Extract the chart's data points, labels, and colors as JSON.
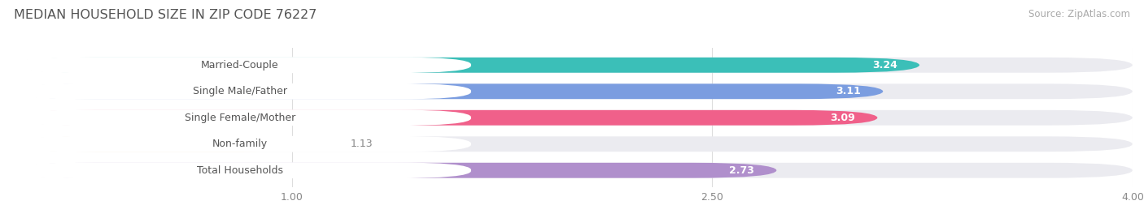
{
  "title": "MEDIAN HOUSEHOLD SIZE IN ZIP CODE 76227",
  "source": "Source: ZipAtlas.com",
  "categories": [
    "Married-Couple",
    "Single Male/Father",
    "Single Female/Mother",
    "Non-family",
    "Total Households"
  ],
  "values": [
    3.24,
    3.11,
    3.09,
    1.13,
    2.73
  ],
  "bar_colors": [
    "#3bbfb8",
    "#7b9de0",
    "#f0608a",
    "#f5c896",
    "#b08fcc"
  ],
  "bar_bg_color": "#ebebf0",
  "value_label_color_inside": "#ffffff",
  "value_label_color_outside": "#888888",
  "xlim": [
    0,
    4.0
  ],
  "xticks": [
    1.0,
    2.5,
    4.0
  ],
  "bar_height": 0.58,
  "label_fontsize": 9.0,
  "value_fontsize": 9.0,
  "title_fontsize": 11.5,
  "source_fontsize": 8.5,
  "background_color": "#ffffff",
  "pill_color": "#ffffff",
  "label_text_color": "#555555",
  "rounding_size": 0.3
}
